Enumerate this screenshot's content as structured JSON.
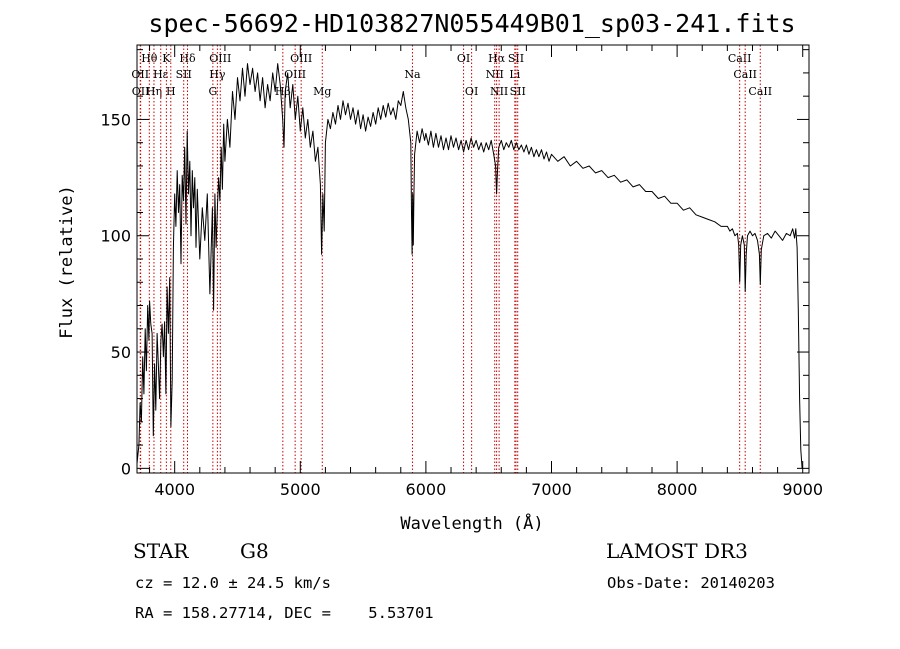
{
  "chart_data": {
    "type": "line",
    "title": "spec-56692-HD103827N055449B01_sp03-241.fits",
    "xlabel": "Wavelength (Å)",
    "ylabel": "Flux (relative)",
    "xlim": [
      3700,
      9050
    ],
    "ylim": [
      -2,
      182
    ],
    "x_ticks": [
      4000,
      5000,
      6000,
      7000,
      8000,
      9000
    ],
    "y_ticks": [
      0,
      50,
      100,
      150
    ],
    "grid": false,
    "series": [
      {
        "color": "#000000",
        "points": [
          [
            3700,
            2
          ],
          [
            3715,
            10
          ],
          [
            3725,
            28
          ],
          [
            3735,
            20
          ],
          [
            3745,
            48
          ],
          [
            3755,
            32
          ],
          [
            3765,
            60
          ],
          [
            3775,
            42
          ],
          [
            3785,
            70
          ],
          [
            3795,
            55
          ],
          [
            3800,
            72
          ],
          [
            3810,
            62
          ],
          [
            3820,
            58
          ],
          [
            3830,
            14
          ],
          [
            3840,
            45
          ],
          [
            3850,
            25
          ],
          [
            3860,
            58
          ],
          [
            3870,
            44
          ],
          [
            3880,
            30
          ],
          [
            3890,
            55
          ],
          [
            3900,
            62
          ],
          [
            3910,
            48
          ],
          [
            3920,
            63
          ],
          [
            3930,
            32
          ],
          [
            3940,
            78
          ],
          [
            3950,
            58
          ],
          [
            3960,
            82
          ],
          [
            3970,
            18
          ],
          [
            3980,
            38
          ],
          [
            3990,
            95
          ],
          [
            4000,
            118
          ],
          [
            4010,
            104
          ],
          [
            4020,
            128
          ],
          [
            4030,
            110
          ],
          [
            4040,
            122
          ],
          [
            4050,
            88
          ],
          [
            4060,
            126
          ],
          [
            4070,
            115
          ],
          [
            4080,
            138
          ],
          [
            4090,
            105
          ],
          [
            4100,
            145
          ],
          [
            4110,
            118
          ],
          [
            4120,
            132
          ],
          [
            4130,
            100
          ],
          [
            4140,
            128
          ],
          [
            4150,
            112
          ],
          [
            4160,
            125
          ],
          [
            4170,
            95
          ],
          [
            4180,
            120
          ],
          [
            4200,
            90
          ],
          [
            4220,
            112
          ],
          [
            4240,
            98
          ],
          [
            4260,
            118
          ],
          [
            4280,
            75
          ],
          [
            4300,
            112
          ],
          [
            4310,
            68
          ],
          [
            4320,
            118
          ],
          [
            4330,
            95
          ],
          [
            4340,
            112
          ],
          [
            4350,
            125
          ],
          [
            4360,
            115
          ],
          [
            4370,
            138
          ],
          [
            4380,
            120
          ],
          [
            4390,
            148
          ],
          [
            4400,
            132
          ],
          [
            4420,
            150
          ],
          [
            4440,
            138
          ],
          [
            4460,
            162
          ],
          [
            4480,
            150
          ],
          [
            4500,
            168
          ],
          [
            4520,
            158
          ],
          [
            4540,
            172
          ],
          [
            4560,
            160
          ],
          [
            4580,
            174
          ],
          [
            4600,
            165
          ],
          [
            4620,
            172
          ],
          [
            4640,
            162
          ],
          [
            4660,
            170
          ],
          [
            4680,
            158
          ],
          [
            4700,
            168
          ],
          [
            4720,
            155
          ],
          [
            4740,
            165
          ],
          [
            4760,
            158
          ],
          [
            4780,
            170
          ],
          [
            4800,
            162
          ],
          [
            4820,
            174
          ],
          [
            4840,
            165
          ],
          [
            4860,
            150
          ],
          [
            4870,
            138
          ],
          [
            4880,
            162
          ],
          [
            4900,
            170
          ],
          [
            4920,
            155
          ],
          [
            4940,
            165
          ],
          [
            4960,
            150
          ],
          [
            4980,
            160
          ],
          [
            5000,
            145
          ],
          [
            5020,
            155
          ],
          [
            5040,
            142
          ],
          [
            5060,
            150
          ],
          [
            5080,
            138
          ],
          [
            5100,
            145
          ],
          [
            5120,
            132
          ],
          [
            5140,
            138
          ],
          [
            5160,
            122
          ],
          [
            5170,
            92
          ],
          [
            5180,
            118
          ],
          [
            5190,
            102
          ],
          [
            5200,
            140
          ],
          [
            5220,
            150
          ],
          [
            5240,
            146
          ],
          [
            5260,
            153
          ],
          [
            5280,
            148
          ],
          [
            5300,
            156
          ],
          [
            5320,
            150
          ],
          [
            5340,
            158
          ],
          [
            5360,
            152
          ],
          [
            5380,
            157
          ],
          [
            5400,
            150
          ],
          [
            5420,
            155
          ],
          [
            5440,
            148
          ],
          [
            5460,
            154
          ],
          [
            5480,
            146
          ],
          [
            5500,
            152
          ],
          [
            5520,
            145
          ],
          [
            5540,
            151
          ],
          [
            5560,
            147
          ],
          [
            5580,
            153
          ],
          [
            5600,
            148
          ],
          [
            5620,
            155
          ],
          [
            5640,
            150
          ],
          [
            5660,
            156
          ],
          [
            5680,
            151
          ],
          [
            5700,
            157
          ],
          [
            5720,
            152
          ],
          [
            5740,
            155
          ],
          [
            5760,
            150
          ],
          [
            5780,
            158
          ],
          [
            5800,
            156
          ],
          [
            5820,
            162
          ],
          [
            5840,
            155
          ],
          [
            5860,
            150
          ],
          [
            5880,
            140
          ],
          [
            5885,
            110
          ],
          [
            5890,
            92
          ],
          [
            5895,
            118
          ],
          [
            5900,
            96
          ],
          [
            5905,
            120
          ],
          [
            5910,
            135
          ],
          [
            5930,
            145
          ],
          [
            5950,
            140
          ],
          [
            5970,
            146
          ],
          [
            5990,
            141
          ],
          [
            6000,
            144
          ],
          [
            6020,
            139
          ],
          [
            6040,
            145
          ],
          [
            6060,
            138
          ],
          [
            6080,
            144
          ],
          [
            6100,
            138
          ],
          [
            6120,
            143
          ],
          [
            6140,
            137
          ],
          [
            6160,
            142
          ],
          [
            6180,
            137
          ],
          [
            6200,
            143
          ],
          [
            6220,
            138
          ],
          [
            6240,
            142
          ],
          [
            6260,
            137
          ],
          [
            6280,
            141
          ],
          [
            6300,
            136
          ],
          [
            6320,
            141
          ],
          [
            6340,
            137
          ],
          [
            6360,
            142
          ],
          [
            6380,
            138
          ],
          [
            6400,
            141
          ],
          [
            6420,
            137
          ],
          [
            6440,
            140
          ],
          [
            6460,
            136
          ],
          [
            6480,
            140
          ],
          [
            6500,
            137
          ],
          [
            6520,
            141
          ],
          [
            6540,
            135
          ],
          [
            6555,
            130
          ],
          [
            6563,
            118
          ],
          [
            6570,
            128
          ],
          [
            6580,
            138
          ],
          [
            6600,
            141
          ],
          [
            6620,
            137
          ],
          [
            6640,
            140
          ],
          [
            6660,
            138
          ],
          [
            6680,
            141
          ],
          [
            6700,
            137
          ],
          [
            6720,
            140
          ],
          [
            6740,
            137
          ],
          [
            6760,
            139
          ],
          [
            6780,
            136
          ],
          [
            6800,
            139
          ],
          [
            6820,
            135
          ],
          [
            6840,
            138
          ],
          [
            6860,
            134
          ],
          [
            6880,
            137
          ],
          [
            6900,
            134
          ],
          [
            6920,
            137
          ],
          [
            6940,
            133
          ],
          [
            6960,
            136
          ],
          [
            6980,
            132
          ],
          [
            7000,
            135
          ],
          [
            7050,
            132
          ],
          [
            7100,
            134
          ],
          [
            7150,
            130
          ],
          [
            7200,
            132
          ],
          [
            7250,
            129
          ],
          [
            7300,
            130
          ],
          [
            7350,
            127
          ],
          [
            7400,
            128
          ],
          [
            7450,
            125
          ],
          [
            7500,
            126
          ],
          [
            7550,
            123
          ],
          [
            7600,
            124
          ],
          [
            7650,
            121
          ],
          [
            7700,
            122
          ],
          [
            7750,
            119
          ],
          [
            7800,
            119
          ],
          [
            7850,
            116
          ],
          [
            7900,
            117
          ],
          [
            7950,
            114
          ],
          [
            8000,
            114
          ],
          [
            8050,
            111
          ],
          [
            8100,
            112
          ],
          [
            8150,
            109
          ],
          [
            8200,
            108
          ],
          [
            8250,
            107
          ],
          [
            8300,
            106
          ],
          [
            8350,
            104
          ],
          [
            8400,
            104
          ],
          [
            8420,
            102
          ],
          [
            8440,
            103
          ],
          [
            8460,
            100
          ],
          [
            8480,
            101
          ],
          [
            8490,
            96
          ],
          [
            8498,
            80
          ],
          [
            8506,
            96
          ],
          [
            8520,
            100
          ],
          [
            8535,
            96
          ],
          [
            8542,
            76
          ],
          [
            8550,
            92
          ],
          [
            8560,
            100
          ],
          [
            8580,
            102
          ],
          [
            8600,
            100
          ],
          [
            8620,
            101
          ],
          [
            8640,
            98
          ],
          [
            8655,
            92
          ],
          [
            8662,
            79
          ],
          [
            8670,
            94
          ],
          [
            8690,
            100
          ],
          [
            8720,
            101
          ],
          [
            8750,
            99
          ],
          [
            8780,
            102
          ],
          [
            8810,
            100
          ],
          [
            8840,
            98
          ],
          [
            8870,
            101
          ],
          [
            8900,
            100
          ],
          [
            8920,
            103
          ],
          [
            8935,
            99
          ],
          [
            8945,
            103
          ],
          [
            8955,
            95
          ],
          [
            8965,
            68
          ],
          [
            8975,
            30
          ],
          [
            8985,
            8
          ],
          [
            8995,
            0
          ]
        ]
      }
    ],
    "lines": [
      {
        "wl": 3726,
        "label": "OII",
        "row": 2
      },
      {
        "wl": 3729,
        "label": "OII",
        "row": 3
      },
      {
        "wl": 3798,
        "label": "Hθ",
        "row": 1
      },
      {
        "wl": 3835,
        "label": "Hη",
        "row": 3
      },
      {
        "wl": 3889,
        "label": "Hε",
        "row": 2
      },
      {
        "wl": 3934,
        "label": "K",
        "row": 1
      },
      {
        "wl": 3969,
        "label": "H",
        "row": 3
      },
      {
        "wl": 4102,
        "label": "Hδ",
        "row": 1
      },
      {
        "wl": 4072,
        "label": "SII",
        "row": 2
      },
      {
        "wl": 4304,
        "label": "G",
        "row": 3
      },
      {
        "wl": 4340,
        "label": "Hγ",
        "row": 2
      },
      {
        "wl": 4363,
        "label": "OIII",
        "row": 1
      },
      {
        "wl": 4861,
        "label": "Hβ",
        "row": 3
      },
      {
        "wl": 4959,
        "label": "OIII",
        "row": 2
      },
      {
        "wl": 5007,
        "label": "OIII",
        "row": 1
      },
      {
        "wl": 5175,
        "label": "Mg",
        "row": 3
      },
      {
        "wl": 5893,
        "label": "Na",
        "row": 2
      },
      {
        "wl": 6300,
        "label": "OI",
        "row": 1
      },
      {
        "wl": 6364,
        "label": "OI",
        "row": 3
      },
      {
        "wl": 6548,
        "label": "NII",
        "row": 2
      },
      {
        "wl": 6563,
        "label": "Hα",
        "row": 1
      },
      {
        "wl": 6583,
        "label": "NII",
        "row": 3
      },
      {
        "wl": 6708,
        "label": "Li",
        "row": 2
      },
      {
        "wl": 6717,
        "label": "SII",
        "row": 1
      },
      {
        "wl": 6731,
        "label": "SII",
        "row": 3
      },
      {
        "wl": 8498,
        "label": "CaII",
        "row": 1
      },
      {
        "wl": 8542,
        "label": "CaII",
        "row": 2
      },
      {
        "wl": 8662,
        "label": "CaII",
        "row": 3
      }
    ],
    "line_color": "#cc0000"
  },
  "info": {
    "object_type": "STAR",
    "subclass": "G8",
    "survey": "LAMOST DR3",
    "cz": "cz = 12.0 ± 24.5 km/s",
    "obs_date": "Obs-Date: 20140203",
    "coords": "RA = 158.27714, DEC =    5.53701"
  }
}
